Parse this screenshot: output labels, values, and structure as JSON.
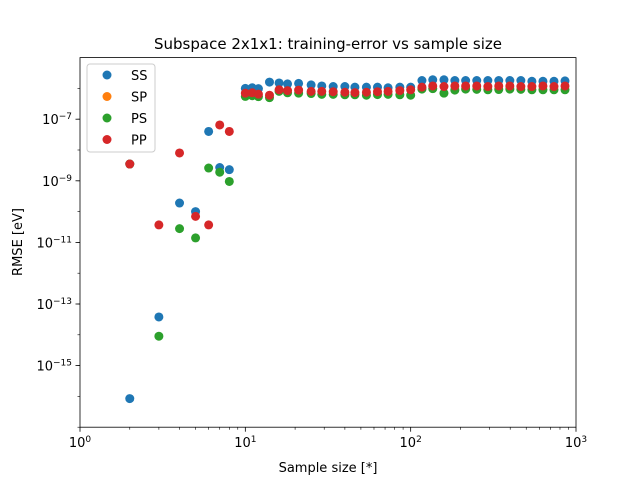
{
  "chart_data": {
    "type": "scatter",
    "title": "Subspace 2x1x1: training-error vs sample size",
    "xlabel": "Sample size [*]",
    "ylabel": "RMSE [eV]",
    "xscale": "log",
    "yscale": "log",
    "xlim": [
      1,
      1000
    ],
    "ylim": [
      1e-17,
      1e-05
    ],
    "x_ticks": [
      {
        "value": 1,
        "mantissa": "10",
        "exp": "0"
      },
      {
        "value": 10,
        "mantissa": "10",
        "exp": "1"
      },
      {
        "value": 100,
        "mantissa": "10",
        "exp": "2"
      },
      {
        "value": 1000,
        "mantissa": "10",
        "exp": "3"
      }
    ],
    "y_ticks": [
      {
        "value": 1e-15,
        "mantissa": "10",
        "exp": "−15"
      },
      {
        "value": 1e-13,
        "mantissa": "10",
        "exp": "−13"
      },
      {
        "value": 1e-11,
        "mantissa": "10",
        "exp": "−11"
      },
      {
        "value": 1e-09,
        "mantissa": "10",
        "exp": "−9"
      },
      {
        "value": 1e-07,
        "mantissa": "10",
        "exp": "−7"
      }
    ],
    "legend_position": "upper-left",
    "grid": false,
    "series": [
      {
        "name": "SS",
        "color": "#1f77b4",
        "points": [
          [
            2,
            3.5e-09
          ],
          [
            2,
            8.5e-17
          ],
          [
            3,
            3.8e-14
          ],
          [
            4,
            1.9e-10
          ],
          [
            5,
            1e-10
          ],
          [
            6,
            4e-08
          ],
          [
            7,
            2.7e-09
          ],
          [
            8,
            2.3e-09
          ],
          [
            10,
            1e-06
          ],
          [
            11,
            1.05e-06
          ],
          [
            12,
            9.8e-07
          ],
          [
            14,
            1.6e-06
          ],
          [
            16,
            1.5e-06
          ],
          [
            18,
            1.4e-06
          ],
          [
            21,
            1.45e-06
          ],
          [
            25,
            1.3e-06
          ],
          [
            29,
            1.2e-06
          ],
          [
            34,
            1.15e-06
          ],
          [
            40,
            1.15e-06
          ],
          [
            46,
            1.1e-06
          ],
          [
            54,
            1.1e-06
          ],
          [
            63,
            1.1e-06
          ],
          [
            73,
            1.05e-06
          ],
          [
            86,
            1.1e-06
          ],
          [
            100,
            1.1e-06
          ],
          [
            117,
            1.8e-06
          ],
          [
            136,
            1.9e-06
          ],
          [
            159,
            1.9e-06
          ],
          [
            185,
            1.8e-06
          ],
          [
            215,
            1.8e-06
          ],
          [
            251,
            1.8e-06
          ],
          [
            293,
            1.8e-06
          ],
          [
            341,
            1.8e-06
          ],
          [
            398,
            1.8e-06
          ],
          [
            464,
            1.8e-06
          ],
          [
            541,
            1.7e-06
          ],
          [
            631,
            1.7e-06
          ],
          [
            736,
            1.7e-06
          ],
          [
            858,
            1.75e-06
          ]
        ]
      },
      {
        "name": "SP",
        "color": "#ff7f0e",
        "points": []
      },
      {
        "name": "PS",
        "color": "#2ca02c",
        "points": [
          [
            2,
            3.5e-09
          ],
          [
            3,
            9e-15
          ],
          [
            4,
            2.8e-11
          ],
          [
            5,
            1.4e-11
          ],
          [
            6,
            2.6e-09
          ],
          [
            7,
            1.9e-09
          ],
          [
            8,
            9.5e-10
          ],
          [
            10,
            5.5e-07
          ],
          [
            11,
            5.8e-07
          ],
          [
            12,
            5.4e-07
          ],
          [
            14,
            5e-07
          ],
          [
            16,
            8e-07
          ],
          [
            18,
            7.2e-07
          ],
          [
            21,
            7e-07
          ],
          [
            25,
            6.8e-07
          ],
          [
            29,
            6.4e-07
          ],
          [
            34,
            6.4e-07
          ],
          [
            40,
            6.2e-07
          ],
          [
            46,
            6.2e-07
          ],
          [
            54,
            6e-07
          ],
          [
            63,
            6.3e-07
          ],
          [
            73,
            6.4e-07
          ],
          [
            86,
            6.2e-07
          ],
          [
            100,
            6e-07
          ],
          [
            117,
            9.5e-07
          ],
          [
            136,
            9.8e-07
          ],
          [
            159,
            7e-07
          ],
          [
            185,
            8.8e-07
          ],
          [
            215,
            9.5e-07
          ],
          [
            251,
            9.3e-07
          ],
          [
            293,
            9e-07
          ],
          [
            341,
            9.2e-07
          ],
          [
            398,
            9.5e-07
          ],
          [
            464,
            9.3e-07
          ],
          [
            541,
            9e-07
          ],
          [
            631,
            9e-07
          ],
          [
            736,
            9e-07
          ],
          [
            858,
            9e-07
          ]
        ]
      },
      {
        "name": "PP",
        "color": "#d62728",
        "points": [
          [
            2,
            3.5e-09
          ],
          [
            3,
            3.7e-11
          ],
          [
            4,
            8e-09
          ],
          [
            5,
            7e-11
          ],
          [
            6,
            3.7e-11
          ],
          [
            7,
            6.5e-08
          ],
          [
            8,
            4e-08
          ],
          [
            10,
            7e-07
          ],
          [
            11,
            7.2e-07
          ],
          [
            12,
            6.5e-07
          ],
          [
            14,
            6e-07
          ],
          [
            16,
            9e-07
          ],
          [
            18,
            8.5e-07
          ],
          [
            21,
            8.8e-07
          ],
          [
            25,
            8e-07
          ],
          [
            29,
            8e-07
          ],
          [
            34,
            7.8e-07
          ],
          [
            40,
            7.5e-07
          ],
          [
            46,
            7.3e-07
          ],
          [
            54,
            7.5e-07
          ],
          [
            63,
            7.8e-07
          ],
          [
            73,
            8e-07
          ],
          [
            86,
            8.5e-07
          ],
          [
            100,
            9e-07
          ],
          [
            117,
            1.1e-06
          ],
          [
            136,
            1.2e-06
          ],
          [
            159,
            1.15e-06
          ],
          [
            185,
            1.2e-06
          ],
          [
            215,
            1.2e-06
          ],
          [
            251,
            1.2e-06
          ],
          [
            293,
            1.15e-06
          ],
          [
            341,
            1.2e-06
          ],
          [
            398,
            1.2e-06
          ],
          [
            464,
            1.15e-06
          ],
          [
            541,
            1.15e-06
          ],
          [
            631,
            1.2e-06
          ],
          [
            736,
            1.15e-06
          ],
          [
            858,
            1.2e-06
          ]
        ]
      }
    ]
  }
}
